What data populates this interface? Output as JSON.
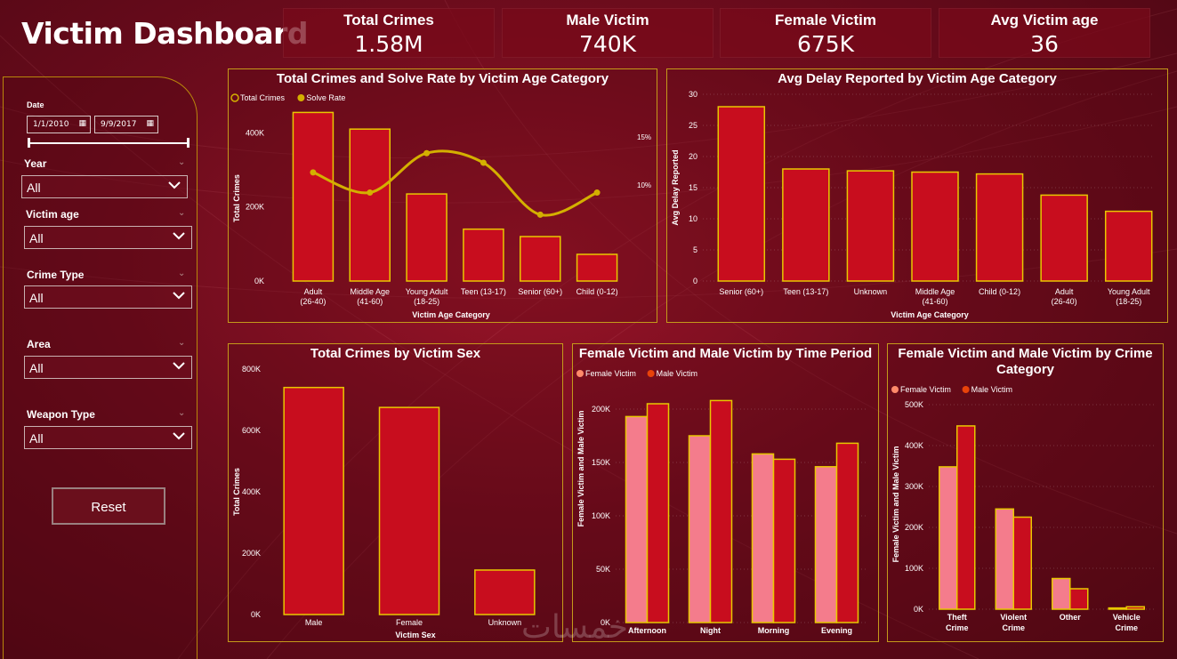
{
  "header": {
    "title": "Victim Dashboard"
  },
  "kpis": [
    {
      "label": "Total Crimes",
      "value": "1.58M"
    },
    {
      "label": "Male Victim",
      "value": "740K"
    },
    {
      "label": "Female Victim",
      "value": "675K"
    },
    {
      "label": "Avg Victim age",
      "value": "36"
    }
  ],
  "filters": {
    "date_label": "Date",
    "date_start": "1/1/2010",
    "date_end": "9/9/2017",
    "year": {
      "label": "Year",
      "value": "All"
    },
    "victim_age": {
      "label": "Victim age",
      "value": "All"
    },
    "crime_type": {
      "label": "Crime Type",
      "value": "All"
    },
    "area": {
      "label": "Area",
      "value": "All"
    },
    "weapon_type": {
      "label": "Weapon Type",
      "value": "All"
    },
    "reset_label": "Reset"
  },
  "colors": {
    "bar": "#c80d1e",
    "bar_outline": "#e8c800",
    "line": "#d4b000",
    "female": "#f47c8c",
    "female_legend": "#ff8a6a",
    "male_legend": "#e8430a"
  },
  "icons": {
    "calendar": "calendar-icon",
    "dropdown": "chevron-down-icon"
  },
  "watermark": "خمسات",
  "chart_data": [
    {
      "id": "c1",
      "type": "bar",
      "title": "Total Crimes and Solve Rate by Victim Age Category",
      "legend": [
        "Total Crimes",
        "Solve Rate"
      ],
      "xlabel": "Victim Age Category",
      "ylabel": "Total Crimes",
      "categories": [
        "Adult (26-40)",
        "Middle Age (41-60)",
        "Young Adult (18-25)",
        "Teen (13-17)",
        "Senior (60+)",
        "Child (0-12)"
      ],
      "series": [
        {
          "name": "Total Crimes",
          "values": [
            455000,
            410000,
            235000,
            140000,
            120000,
            72000
          ]
        },
        {
          "name": "Solve Rate",
          "values": [
            11.3,
            9.2,
            13.3,
            12.3,
            6.9,
            9.2
          ]
        }
      ],
      "ylim": [
        0,
        480000
      ],
      "y2lim": [
        0,
        18.5
      ],
      "yticks": [
        "0K",
        "200K",
        "400K"
      ],
      "y2ticks": [
        "10%",
        "15%"
      ]
    },
    {
      "id": "c2",
      "type": "bar",
      "title": "Avg Delay Reported by Victim Age Category",
      "xlabel": "Victim Age Category",
      "ylabel": "Avg Delay Reported",
      "categories": [
        "Senior (60+)",
        "Teen (13-17)",
        "Unknown",
        "Middle Age (41-60)",
        "Child (0-12)",
        "Adult (26-40)",
        "Young Adult (18-25)"
      ],
      "values": [
        28,
        18,
        17.7,
        17.5,
        17.2,
        13.8,
        11.2
      ],
      "ylim": [
        0,
        30
      ],
      "yticks": [
        "0",
        "5",
        "10",
        "15",
        "20",
        "25",
        "30"
      ]
    },
    {
      "id": "c3",
      "type": "bar",
      "title": "Total Crimes by Victim Sex",
      "xlabel": "Victim Sex",
      "ylabel": "Total Crimes",
      "categories": [
        "Male",
        "Female",
        "Unknown"
      ],
      "values": [
        740000,
        675000,
        145000
      ],
      "ylim": [
        0,
        800000
      ],
      "yticks": [
        "0K",
        "200K",
        "400K",
        "600K",
        "800K"
      ]
    },
    {
      "id": "c4",
      "type": "bar",
      "title": "Female Victim and Male Victim by Time Period",
      "legend": [
        "Female Victim",
        "Male Victim"
      ],
      "ylabel": "Female Victim and Male Victim",
      "categories": [
        "Afternoon",
        "Night",
        "Morning",
        "Evening"
      ],
      "series": [
        {
          "name": "Female Victim",
          "values": [
            193000,
            175000,
            158000,
            146000
          ]
        },
        {
          "name": "Male Victim",
          "values": [
            205000,
            208000,
            153000,
            168000
          ]
        }
      ],
      "ylim": [
        0,
        200000
      ],
      "yticks": [
        "0K",
        "50K",
        "100K",
        "150K",
        "200K"
      ]
    },
    {
      "id": "c5",
      "type": "bar",
      "title": "Female Victim and Male Victim by Crime Category",
      "legend": [
        "Female Victim",
        "Male Victim"
      ],
      "ylabel": "Female Victim and Male Victim",
      "categories": [
        "Theft Crime",
        "Violent Crime",
        "Other",
        "Vehicle Crime"
      ],
      "series": [
        {
          "name": "Female Victim",
          "values": [
            348000,
            245000,
            75000,
            3000
          ]
        },
        {
          "name": "Male Victim",
          "values": [
            448000,
            225000,
            50000,
            6000
          ]
        }
      ],
      "ylim": [
        0,
        500000
      ],
      "yticks": [
        "0K",
        "100K",
        "200K",
        "300K",
        "400K",
        "500K"
      ]
    }
  ]
}
